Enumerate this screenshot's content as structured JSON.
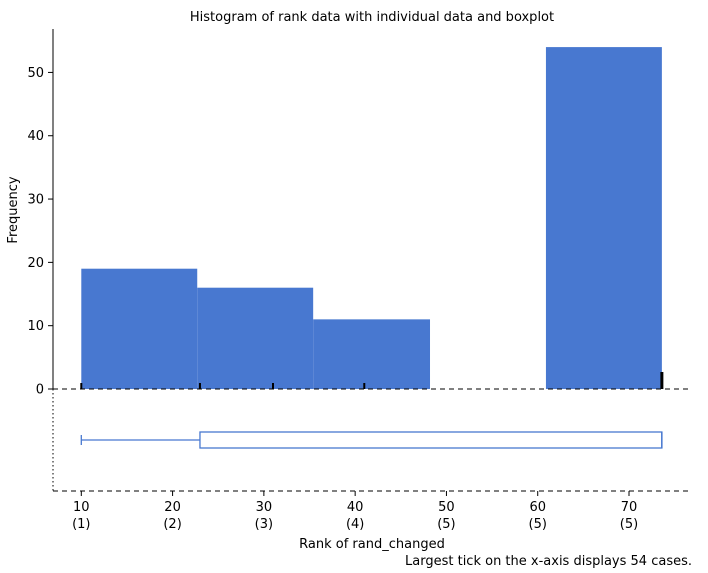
{
  "chart_data": {
    "type": "bar",
    "title": "Histogram of rank data with individual data and boxplot",
    "xlabel": "Rank of rand_changed",
    "ylabel": "Frequency",
    "footnote": "Largest tick on the x-axis displays 54 cases.",
    "xlim": [
      6.9,
      76.9
    ],
    "ylim": [
      0,
      56.7
    ],
    "x_ticks": [
      {
        "value": 10,
        "label": "10",
        "sublabel": "(1)"
      },
      {
        "value": 20,
        "label": "20",
        "sublabel": "(2)"
      },
      {
        "value": 30,
        "label": "30",
        "sublabel": "(3)"
      },
      {
        "value": 40,
        "label": "40",
        "sublabel": "(4)"
      },
      {
        "value": 50,
        "label": "50",
        "sublabel": "(5)"
      },
      {
        "value": 60,
        "label": "60",
        "sublabel": "(5)"
      },
      {
        "value": 70,
        "label": "70",
        "sublabel": "(5)"
      }
    ],
    "y_ticks": [
      0,
      10,
      20,
      30,
      40,
      50
    ],
    "bins": [
      {
        "start": 10.0,
        "end": 22.7,
        "count": 19
      },
      {
        "start": 22.7,
        "end": 35.4,
        "count": 16
      },
      {
        "start": 35.4,
        "end": 48.2,
        "count": 11
      },
      {
        "start": 48.2,
        "end": 60.9,
        "count": 0
      },
      {
        "start": 60.9,
        "end": 73.6,
        "count": 54
      }
    ],
    "rug": [
      {
        "x": 10.0,
        "cases": 1
      },
      {
        "x": 23.0,
        "cases": 1
      },
      {
        "x": 31.0,
        "cases": 1
      },
      {
        "x": 41.0,
        "cases": 1
      },
      {
        "x": 73.6,
        "cases": 54
      }
    ],
    "boxplot": {
      "min": 10.0,
      "q1": 23.0,
      "median": 73.6,
      "q3": 73.6,
      "max": 73.6
    },
    "colors": {
      "bar": "#4878d0",
      "box": "#4878d0",
      "rug": "#000000",
      "axis": "#000000"
    },
    "grid": false
  }
}
